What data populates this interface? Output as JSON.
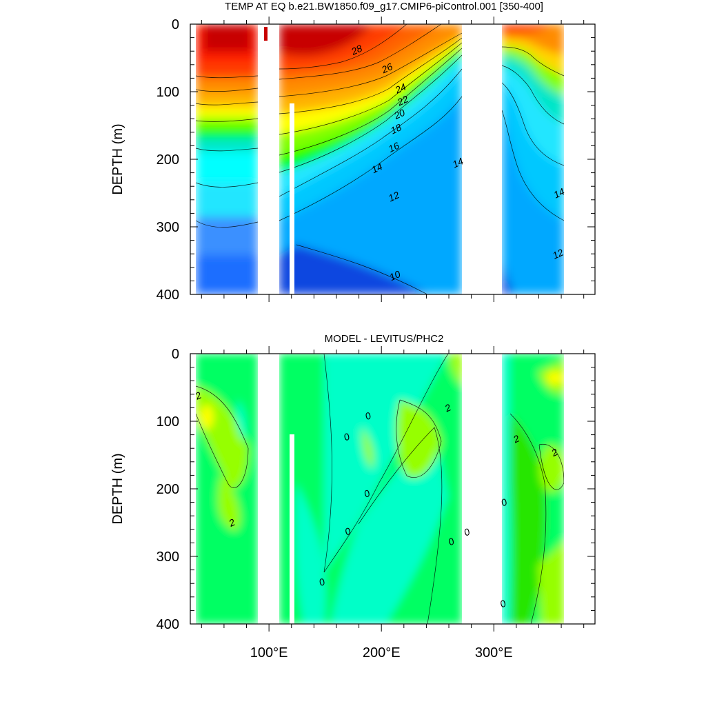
{
  "chart_data": [
    {
      "type": "heatmap",
      "panel": "top",
      "title": "TEMP AT EQ b.e21.BW1850.f09_g17.CMIP6-piControl.001 [350-400]",
      "xlabel": "",
      "ylabel": "DEPTH (m)",
      "xlim": [
        30,
        390
      ],
      "ylim": [
        400,
        0
      ],
      "x_tick_labels": [
        {
          "value": 100,
          "label": "100°E"
        },
        {
          "value": 200,
          "label": "200°E"
        },
        {
          "value": 300,
          "label": "300°E"
        }
      ],
      "y_tick_labels": [
        {
          "value": 0,
          "label": "0"
        },
        {
          "value": 100,
          "label": "100"
        },
        {
          "value": 200,
          "label": "200"
        },
        {
          "value": 300,
          "label": "300"
        },
        {
          "value": 400,
          "label": "400"
        }
      ],
      "land_masks_lon": [
        [
          98,
          116
        ],
        [
          131,
          132
        ],
        [
          280,
          314
        ],
        [
          371,
          390
        ]
      ],
      "contour_labels": [
        {
          "text": "28",
          "lon": 178,
          "depth": 38
        },
        {
          "text": "26",
          "lon": 205,
          "depth": 65
        },
        {
          "text": "24",
          "lon": 217,
          "depth": 95
        },
        {
          "text": "22",
          "lon": 219,
          "depth": 113
        },
        {
          "text": "20",
          "lon": 216,
          "depth": 133
        },
        {
          "text": "18",
          "lon": 213,
          "depth": 155
        },
        {
          "text": "16",
          "lon": 211,
          "depth": 182
        },
        {
          "text": "14",
          "lon": 196,
          "depth": 213
        },
        {
          "text": "14",
          "lon": 268,
          "depth": 205
        },
        {
          "text": "14",
          "lon": 358,
          "depth": 250
        },
        {
          "text": "12",
          "lon": 211,
          "depth": 255
        },
        {
          "text": "12",
          "lon": 357,
          "depth": 340
        },
        {
          "text": "10",
          "lon": 212,
          "depth": 372
        }
      ],
      "colors": [
        "#0a28c8",
        "#0f46e0",
        "#1a6eff",
        "#3a90ff",
        "#00a8ff",
        "#00c8ff",
        "#21e6ff",
        "#00ffff",
        "#00e6c8",
        "#00f080",
        "#00ff00",
        "#80ff00",
        "#d2ff00",
        "#ffff00",
        "#ffd700",
        "#ffb400",
        "#ff8c00",
        "#ff6400",
        "#ff3c00",
        "#ff1e00",
        "#c80000"
      ]
    },
    {
      "type": "heatmap",
      "panel": "bottom",
      "title": "MODEL - LEVITUS/PHC2",
      "xlabel": "",
      "ylabel": "DEPTH (m)",
      "xlim": [
        30,
        390
      ],
      "ylim": [
        400,
        0
      ],
      "x_tick_labels": [
        {
          "value": 100,
          "label": "100°E"
        },
        {
          "value": 200,
          "label": "200°E"
        },
        {
          "value": 300,
          "label": "300°E"
        }
      ],
      "y_tick_labels": [
        {
          "value": 0,
          "label": "0"
        },
        {
          "value": 100,
          "label": "100"
        },
        {
          "value": 200,
          "label": "200"
        },
        {
          "value": 300,
          "label": "300"
        },
        {
          "value": 400,
          "label": "400"
        }
      ],
      "land_masks_lon": [
        [
          98,
          116
        ],
        [
          131,
          132
        ],
        [
          280,
          314
        ],
        [
          371,
          390
        ]
      ],
      "contour_labels": [
        {
          "text": "2",
          "lon": 37,
          "depth": 62
        },
        {
          "text": "2",
          "lon": 259,
          "depth": 80
        },
        {
          "text": "0",
          "lon": 188,
          "depth": 92
        },
        {
          "text": "0",
          "lon": 169,
          "depth": 123
        },
        {
          "text": "2",
          "lon": 320,
          "depth": 126
        },
        {
          "text": "2",
          "lon": 354,
          "depth": 146
        },
        {
          "text": "0",
          "lon": 187,
          "depth": 207
        },
        {
          "text": "0",
          "lon": 309,
          "depth": 220
        },
        {
          "text": "2",
          "lon": 67,
          "depth": 250
        },
        {
          "text": "0",
          "lon": 170,
          "depth": 263
        },
        {
          "text": "0",
          "lon": 276,
          "depth": 264
        },
        {
          "text": "0",
          "lon": 262,
          "depth": 278
        },
        {
          "text": "0",
          "lon": 147,
          "depth": 338
        },
        {
          "text": "0",
          "lon": 308,
          "depth": 370
        }
      ],
      "colors": [
        "#00ffc8",
        "#00ff64",
        "#28e600",
        "#96ff00",
        "#ffff00",
        "#00e6e6",
        "#64e664"
      ]
    }
  ]
}
